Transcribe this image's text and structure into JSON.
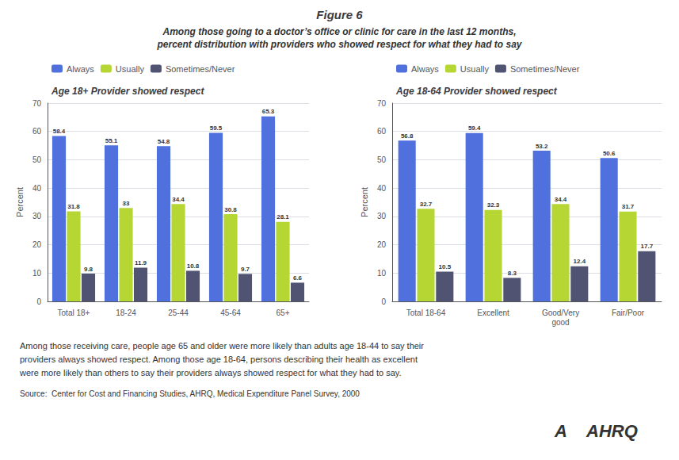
{
  "title": "Figure 6",
  "subtitle": "Among those going to a doctor’s office or clinic for care in the last 12 months,\npercent distribution with providers who showed respect for what they had to say",
  "annotations": [
    "Among those receiving care, people age 65 and older were more likely than adults age 18-44 to say their",
    "providers always showed respect. Among those age 18-64, persons describing their health as excellent",
    "were more likely than others to say their providers always showed respect for what they had to say.",
    "Source:  Center for Cost and Financing Studies, AHRQ, Medical Expenditure Panel Survey, 2000",
    "A",
    "AHRQ"
  ],
  "chart_data": [
    {
      "type": "bar",
      "title": "Age 18+ Provider showed respect",
      "categories": [
        "Total 18+",
        "18-24",
        "25-44",
        "45-64",
        "65+"
      ],
      "series": [
        {
          "name": "Always",
          "values": [
            58.4,
            55.1,
            54.8,
            59.5,
            65.3
          ]
        },
        {
          "name": "Usually",
          "values": [
            31.8,
            33.0,
            34.4,
            30.8,
            28.1
          ]
        },
        {
          "name": "Sometimes/Never",
          "values": [
            9.8,
            11.9,
            10.8,
            9.7,
            6.6
          ]
        }
      ],
      "ylabel": "Percent",
      "ylim": [
        0,
        70
      ],
      "yticks": [
        0,
        10,
        20,
        30,
        40,
        50,
        60,
        70
      ],
      "grid": true,
      "data_labels": true,
      "legend": "top"
    },
    {
      "type": "bar",
      "title": "Age 18-64 Provider showed respect",
      "categories": [
        "Total 18-64",
        "Excellent",
        "Good/Very\ngood",
        "Fair/Poor"
      ],
      "series": [
        {
          "name": "Always",
          "values": [
            56.8,
            59.4,
            53.2,
            50.6
          ]
        },
        {
          "name": "Usually",
          "values": [
            32.7,
            32.3,
            34.4,
            31.7
          ]
        },
        {
          "name": "Sometimes/Never",
          "values": [
            10.5,
            8.3,
            12.4,
            17.7
          ]
        }
      ],
      "ylabel": "Percent",
      "ylim": [
        0,
        70
      ],
      "yticks": [
        0,
        10,
        20,
        30,
        40,
        50,
        60,
        70
      ],
      "grid": true,
      "data_labels": true,
      "legend": "top"
    }
  ]
}
